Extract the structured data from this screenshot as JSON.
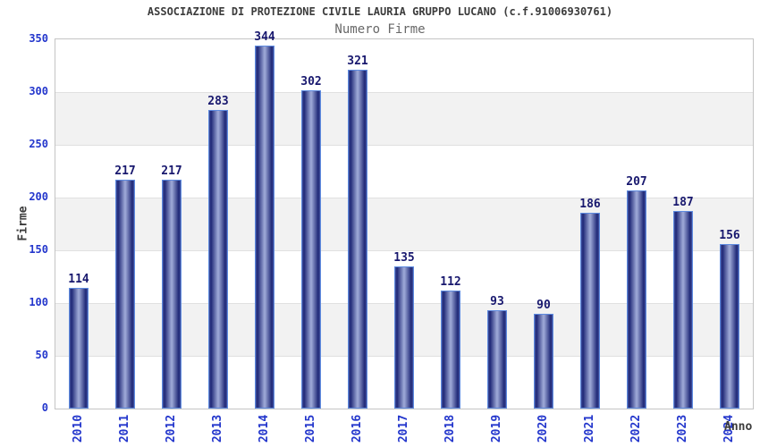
{
  "chart_data": {
    "type": "bar",
    "title": "ASSOCIAZIONE DI PROTEZIONE CIVILE LAURIA GRUPPO LUCANO (c.f.91006930761)",
    "subtitle": "Numero Firme",
    "xlabel": "Anno",
    "ylabel": "Firme",
    "categories": [
      "2010",
      "2011",
      "2012",
      "2013",
      "2014",
      "2015",
      "2016",
      "2017",
      "2018",
      "2019",
      "2020",
      "2021",
      "2022",
      "2023",
      "2024"
    ],
    "values": [
      114,
      217,
      217,
      283,
      344,
      302,
      321,
      135,
      112,
      93,
      90,
      186,
      207,
      187,
      156
    ],
    "ylim": [
      0,
      350
    ],
    "yticks": [
      0,
      50,
      100,
      150,
      200,
      250,
      300,
      350
    ],
    "grid": "alternating horizontal bands with gridlines every 50",
    "legend": "none"
  },
  "colors": {
    "axis_tick_label": "#2336cc",
    "value_label": "#18186e",
    "title": "#3c3c3c",
    "subtitle": "#686868",
    "band_white": "#ffffff",
    "band_gray": "#f2f2f2",
    "grid_line": "#e0e0e0",
    "plot_border": "#c4c4c4",
    "bar_border": "#5e8be0",
    "bar_edge": "#45549f",
    "bar_dark": "#1e2776",
    "bar_center": "#9ba6d5",
    "background": "#ffffff"
  }
}
